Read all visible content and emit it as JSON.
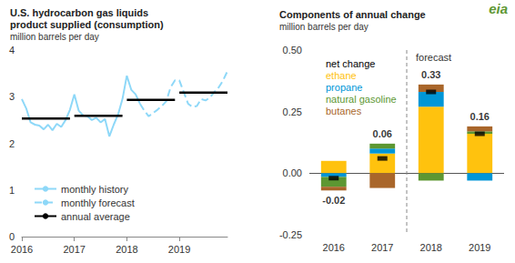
{
  "logo": "eia",
  "chart_data": [
    {
      "type": "line",
      "title": "U.S. hydrocarbon gas liquids\nproduct supplied (consumption)",
      "ylabel": "million barrels per day",
      "categories": [
        "2016",
        null,
        null,
        null,
        null,
        null,
        null,
        null,
        null,
        null,
        null,
        null,
        "2017",
        null,
        null,
        null,
        null,
        null,
        null,
        null,
        null,
        null,
        null,
        null,
        "2018",
        null,
        null,
        null,
        null,
        null,
        null,
        null,
        null,
        null,
        null,
        null,
        "2019",
        null,
        null,
        null,
        null,
        null,
        null,
        null,
        null,
        null,
        null,
        null
      ],
      "series": [
        {
          "name": "monthly history",
          "color": "#8ed8f8",
          "line_style": "solid",
          "values": [
            2.95,
            2.75,
            2.45,
            2.4,
            2.38,
            2.3,
            2.4,
            2.28,
            2.42,
            2.35,
            2.5,
            2.72,
            3.05,
            2.7,
            2.6,
            2.58,
            2.5,
            2.55,
            2.45,
            2.52,
            2.15,
            2.4,
            2.62,
            2.95,
            3.45,
            3.15,
            3.05,
            2.85,
            null,
            null,
            null,
            null,
            null,
            null,
            null,
            null,
            null,
            null,
            null,
            null,
            null,
            null,
            null,
            null,
            null,
            null,
            null,
            null
          ]
        },
        {
          "name": "monthly forecast",
          "color": "#8ed8f8",
          "line_style": "dashed",
          "values": [
            null,
            null,
            null,
            null,
            null,
            null,
            null,
            null,
            null,
            null,
            null,
            null,
            null,
            null,
            null,
            null,
            null,
            null,
            null,
            null,
            null,
            null,
            null,
            null,
            null,
            null,
            null,
            2.85,
            2.7,
            2.58,
            2.65,
            2.72,
            2.8,
            2.9,
            3.2,
            3.35,
            3.35,
            3.1,
            2.85,
            2.78,
            2.8,
            2.95,
            2.92,
            2.98,
            3.1,
            3.2,
            3.35,
            3.55
          ]
        },
        {
          "name": "annual average",
          "type": "segment",
          "color": "#000000",
          "line_style": "solid",
          "values": [
            2.53,
            2.53,
            2.53,
            2.53,
            2.53,
            2.53,
            2.53,
            2.53,
            2.53,
            2.53,
            2.53,
            2.53,
            2.59,
            2.59,
            2.59,
            2.59,
            2.59,
            2.59,
            2.59,
            2.59,
            2.59,
            2.59,
            2.59,
            2.59,
            2.93,
            2.93,
            2.93,
            2.93,
            2.93,
            2.93,
            2.93,
            2.93,
            2.93,
            2.93,
            2.93,
            2.93,
            3.09,
            3.09,
            3.09,
            3.09,
            3.09,
            3.09,
            3.09,
            3.09,
            3.09,
            3.09,
            3.09,
            3.09
          ]
        }
      ],
      "ylim": [
        0,
        4
      ],
      "yticks": [
        0,
        1,
        2,
        3,
        4
      ],
      "grid": false,
      "legend": "lower left"
    },
    {
      "type": "bar",
      "title": "Components of annual change",
      "ylabel": "million barrels per day",
      "categories": [
        "2016",
        "2017",
        "2018",
        "2019"
      ],
      "stacked": true,
      "series": [
        {
          "name": "net change",
          "type": "scatter",
          "marker": "rect",
          "color": "#000000",
          "data_labels": true,
          "values": [
            -0.02,
            0.06,
            0.33,
            0.16
          ]
        },
        {
          "name": "ethane",
          "color": "#ffc20e",
          "values": [
            0.05,
            0.08,
            0.27,
            0.16
          ]
        },
        {
          "name": "propane",
          "color": "#0096d7",
          "values": [
            -0.015,
            0.02,
            0.06,
            -0.03
          ]
        },
        {
          "name": "natural gasoline",
          "color": "#5d9732",
          "values": [
            -0.04,
            0.02,
            -0.03,
            0.01
          ]
        },
        {
          "name": "butanes",
          "color": "#a9662a",
          "values": [
            -0.015,
            -0.06,
            0.03,
            0.02
          ]
        }
      ],
      "ylim": [
        -0.25,
        0.5
      ],
      "yticks": [
        -0.25,
        {
          "value": 0,
          "label": "0.00"
        },
        0.25,
        {
          "value": 0.5,
          "label": "0.50"
        }
      ],
      "grid": false,
      "legend": "upper left",
      "annotations": [
        {
          "text": "forecast",
          "from": "2018"
        }
      ]
    }
  ]
}
